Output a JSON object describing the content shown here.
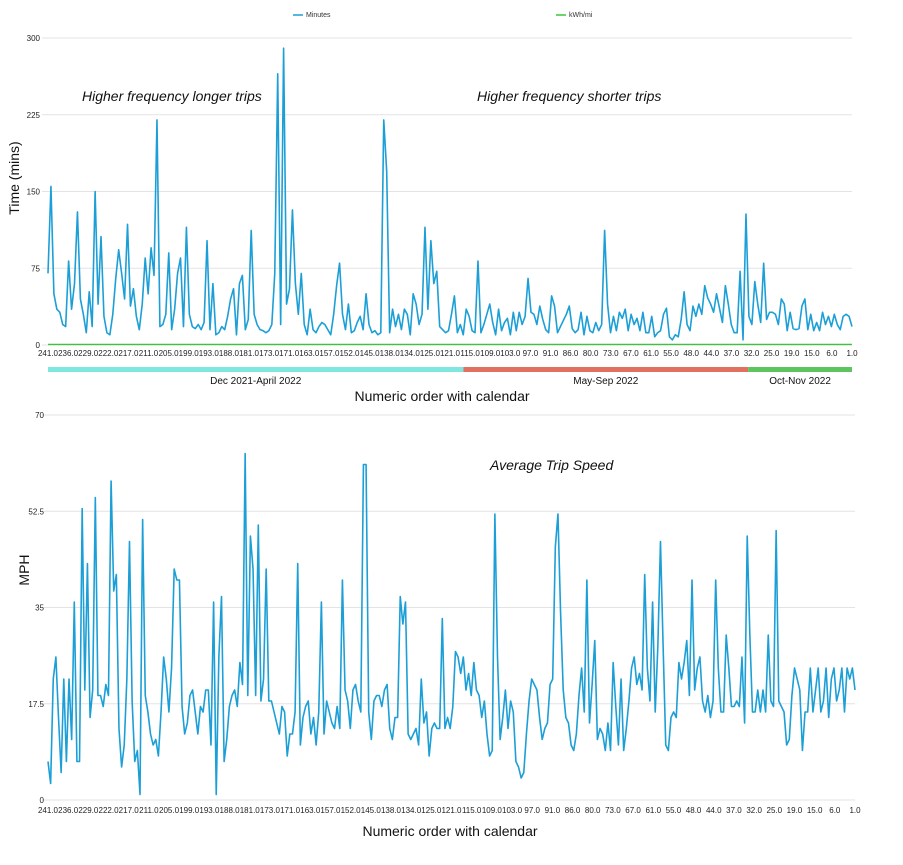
{
  "colors": {
    "series_line": "#1c9fd6",
    "kwh_line": "#3cc43c",
    "period_1": "#7fe6e0",
    "period_2": "#e07060",
    "period_3": "#5ec45e"
  },
  "x_tick_labels": [
    "241.0",
    "236.0",
    "229.0",
    "222.0",
    "217.0",
    "211.0",
    "205.0",
    "199.0",
    "193.0",
    "188.0",
    "181.0",
    "173.0",
    "171.0",
    "163.0",
    "157.0",
    "152.0",
    "145.0",
    "138.0",
    "134.0",
    "125.0",
    "121.0",
    "115.0",
    "109.0",
    "103.0",
    "97.0",
    "91.0",
    "86.0",
    "80.0",
    "73.0",
    "67.0",
    "61.0",
    "55.0",
    "48.0",
    "44.0",
    "37.0",
    "32.0",
    "25.0",
    "19.0",
    "15.0",
    "6.0",
    "1.0"
  ],
  "periods": [
    {
      "label": "Dec 2021-April 2022",
      "start": 241,
      "end": 117
    },
    {
      "label": "May-Sep 2022",
      "start": 117,
      "end": 32
    },
    {
      "label": "Oct-Nov 2022",
      "start": 32,
      "end": 1
    }
  ],
  "chart_data": [
    {
      "type": "line",
      "ylabel": "Time (mins)",
      "xlabel": "Numeric order with calendar",
      "ylim": [
        0,
        300
      ],
      "yticks": [
        "0",
        "75",
        "150",
        "225",
        "300"
      ],
      "legend": {
        "position": "top",
        "entries": [
          "Minutes",
          "kWh/mi"
        ]
      },
      "annotations": [
        "Higher frequency longer trips",
        "Higher frequency shorter trips"
      ],
      "x_start": 241,
      "x_end": 1,
      "series": [
        {
          "name": "Minutes",
          "values": [
            70,
            155,
            50,
            35,
            32,
            20,
            18,
            82,
            35,
            60,
            130,
            45,
            30,
            12,
            52,
            18,
            150,
            40,
            106,
            28,
            12,
            10,
            30,
            65,
            93,
            70,
            45,
            118,
            38,
            55,
            28,
            15,
            40,
            85,
            50,
            95,
            68,
            220,
            18,
            20,
            30,
            90,
            15,
            35,
            70,
            85,
            18,
            115,
            30,
            18,
            16,
            20,
            15,
            22,
            102,
            15,
            60,
            10,
            12,
            18,
            15,
            28,
            45,
            55,
            10,
            60,
            68,
            15,
            25,
            112,
            30,
            20,
            15,
            14,
            12,
            14,
            20,
            70,
            265,
            20,
            290,
            40,
            55,
            132,
            60,
            30,
            70,
            20,
            10,
            35,
            15,
            12,
            18,
            22,
            20,
            15,
            10,
            30,
            58,
            80,
            30,
            15,
            40,
            12,
            14,
            22,
            28,
            15,
            50,
            20,
            12,
            14,
            10,
            12,
            220,
            170,
            12,
            35,
            18,
            30,
            15,
            35,
            30,
            10,
            50,
            40,
            20,
            30,
            115,
            35,
            102,
            60,
            72,
            18,
            15,
            12,
            14,
            30,
            48,
            12,
            20,
            10,
            35,
            28,
            14,
            12,
            82,
            12,
            20,
            30,
            40,
            22,
            10,
            35,
            14,
            22,
            26,
            10,
            32,
            14,
            32,
            20,
            28,
            65,
            32,
            30,
            20,
            38,
            25,
            15,
            12,
            48,
            38,
            12,
            18,
            24,
            30,
            38,
            16,
            12,
            15,
            32,
            10,
            28,
            14,
            12,
            22,
            14,
            20,
            112,
            40,
            12,
            28,
            14,
            32,
            26,
            35,
            14,
            30,
            20,
            26,
            14,
            32,
            12,
            12,
            28,
            8,
            12,
            14,
            30,
            36,
            8,
            5,
            10,
            8,
            25,
            52,
            20,
            14,
            38,
            28,
            40,
            30,
            58,
            46,
            40,
            32,
            50,
            36,
            22,
            58,
            40,
            20,
            12,
            12,
            72,
            5,
            128,
            28,
            20,
            62,
            40,
            22,
            80,
            25,
            32,
            32,
            30,
            20,
            45,
            40,
            14,
            32,
            16,
            15,
            16,
            38,
            45,
            15,
            30,
            14,
            22,
            14,
            32,
            20,
            28,
            18,
            30,
            20,
            15,
            28,
            30,
            28,
            18
          ]
        },
        {
          "name": "kWh/mi",
          "values": [
            0.6,
            0.6
          ]
        }
      ]
    },
    {
      "type": "line",
      "ylabel": "MPH",
      "xlabel": "Numeric order with calendar",
      "ylim": [
        0,
        70
      ],
      "yticks": [
        "0",
        "17.5",
        "35",
        "52.5",
        "70"
      ],
      "annotations": [
        "Average Trip Speed"
      ],
      "x_start": 241,
      "x_end": 1,
      "series": [
        {
          "name": "",
          "values": [
            7,
            3,
            22,
            26,
            15,
            5,
            22,
            7,
            22,
            11,
            36,
            7,
            7,
            53,
            20,
            43,
            15,
            20,
            55,
            19,
            19,
            17,
            21,
            19,
            58,
            38,
            41,
            13,
            6,
            10,
            22,
            47,
            18,
            7,
            9,
            1,
            51,
            19,
            16,
            12,
            10,
            11,
            8,
            16,
            26,
            22,
            16,
            24,
            42,
            40,
            40,
            17,
            12,
            14,
            19,
            20,
            16,
            12,
            17,
            16,
            20,
            20,
            10,
            36,
            1,
            26,
            37,
            7,
            11,
            17,
            19,
            20,
            17,
            25,
            21,
            63,
            19,
            48,
            42,
            19,
            50,
            18,
            22,
            42,
            18,
            18,
            16,
            14,
            12,
            17,
            16,
            8,
            12,
            12,
            16,
            43,
            10,
            15,
            17,
            18,
            12,
            15,
            10,
            16,
            36,
            12,
            18,
            16,
            14,
            13,
            17,
            13,
            40,
            20,
            18,
            13,
            20,
            21,
            18,
            16,
            61,
            61,
            16,
            11,
            18,
            19,
            19,
            17,
            20,
            21,
            13,
            11,
            15,
            15,
            37,
            32,
            36,
            12,
            11,
            12,
            13,
            10,
            22,
            14,
            16,
            8,
            13,
            14,
            13,
            13,
            33,
            13,
            15,
            13,
            17,
            27,
            26,
            23,
            26,
            20,
            23,
            19,
            25,
            20,
            19,
            15,
            18,
            12,
            8,
            9,
            52,
            26,
            11,
            15,
            20,
            13,
            18,
            16,
            7,
            6,
            4,
            5,
            12,
            18,
            22,
            21,
            20,
            15,
            11,
            13,
            14,
            21,
            22,
            46,
            52,
            34,
            20,
            15,
            14,
            10,
            9,
            12,
            19,
            24,
            16,
            40,
            14,
            21,
            29,
            11,
            13,
            12,
            9,
            14,
            9,
            25,
            17,
            10,
            22,
            9,
            13,
            18,
            24,
            26,
            21,
            23,
            20,
            41,
            24,
            18,
            36,
            16,
            28,
            47,
            28,
            10,
            9,
            15,
            16,
            15,
            25,
            22,
            25,
            29,
            19,
            40,
            20,
            24,
            26,
            18,
            16,
            19,
            15,
            18,
            40,
            24,
            16,
            16,
            30,
            24,
            17,
            17,
            18,
            17,
            26,
            14,
            48,
            30,
            16,
            16,
            20,
            16,
            20,
            16,
            30,
            18,
            17,
            49,
            18,
            17,
            16,
            10,
            11,
            19,
            24,
            22,
            20,
            9,
            16,
            16,
            24,
            16,
            20,
            24,
            16,
            18,
            24,
            15,
            22,
            24,
            18,
            20,
            24,
            16,
            24,
            22,
            24,
            20
          ]
        }
      ]
    }
  ]
}
